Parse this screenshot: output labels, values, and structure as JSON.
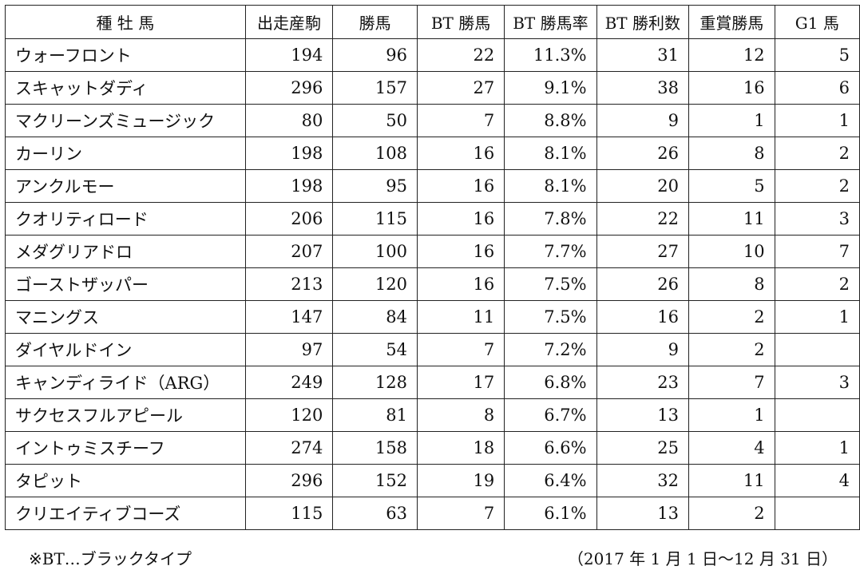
{
  "table": {
    "headers": [
      "種 牡 馬",
      "出走産駒",
      "勝馬",
      "BT 勝馬",
      "BT 勝馬率",
      "BT 勝利数",
      "重賞勝馬",
      "G1 馬"
    ],
    "rows": [
      [
        "ウォーフロント",
        "194",
        "96",
        "22",
        "11.3%",
        "31",
        "12",
        "5"
      ],
      [
        "スキャットダディ",
        "296",
        "157",
        "27",
        "9.1%",
        "38",
        "16",
        "6"
      ],
      [
        "マクリーンズミュージック",
        "80",
        "50",
        "7",
        "8.8%",
        "9",
        "1",
        "1"
      ],
      [
        "カーリン",
        "198",
        "108",
        "16",
        "8.1%",
        "26",
        "8",
        "2"
      ],
      [
        "アンクルモー",
        "198",
        "95",
        "16",
        "8.1%",
        "20",
        "5",
        "2"
      ],
      [
        "クオリティロード",
        "206",
        "115",
        "16",
        "7.8%",
        "22",
        "11",
        "3"
      ],
      [
        "メダグリアドロ",
        "207",
        "100",
        "16",
        "7.7%",
        "27",
        "10",
        "7"
      ],
      [
        "ゴーストザッパー",
        "213",
        "120",
        "16",
        "7.5%",
        "26",
        "8",
        "2"
      ],
      [
        "マニングス",
        "147",
        "84",
        "11",
        "7.5%",
        "16",
        "2",
        "1"
      ],
      [
        "ダイヤルドイン",
        "97",
        "54",
        "7",
        "7.2%",
        "9",
        "2",
        ""
      ],
      [
        "キャンディライド（ARG）",
        "249",
        "128",
        "17",
        "6.8%",
        "23",
        "7",
        "3"
      ],
      [
        "サクセスフルアピール",
        "120",
        "81",
        "8",
        "6.7%",
        "13",
        "1",
        ""
      ],
      [
        "イントゥミスチーフ",
        "274",
        "158",
        "18",
        "6.6%",
        "25",
        "4",
        "1"
      ],
      [
        "タピット",
        "296",
        "152",
        "19",
        "6.4%",
        "32",
        "11",
        "4"
      ],
      [
        "クリエイティブコーズ",
        "115",
        "63",
        "7",
        "6.1%",
        "13",
        "2",
        ""
      ]
    ]
  },
  "footnote": "※BT…ブラックタイプ",
  "period": "（2017 年 1 月 1 日～12 月 31 日）"
}
